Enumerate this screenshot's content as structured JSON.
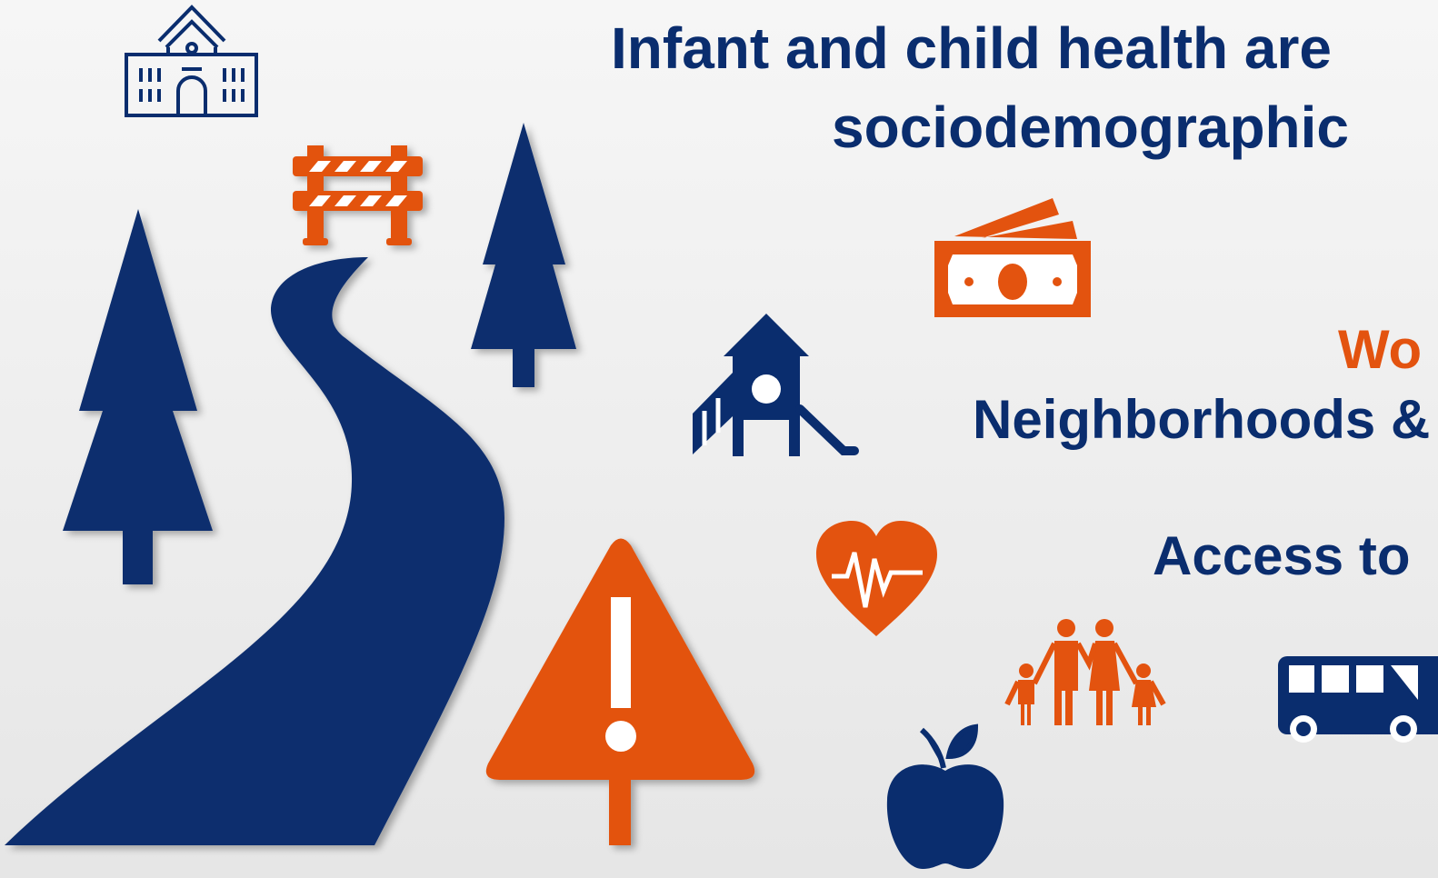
{
  "title": {
    "line1": "Infant and child health are",
    "line2": "sociodemographic"
  },
  "labels": [
    "Wo",
    "Neighborhoods &",
    "Access to"
  ]
}
